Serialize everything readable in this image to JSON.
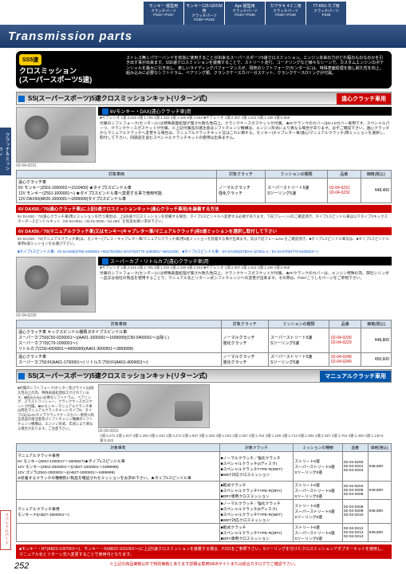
{
  "tabs": [
    {
      "t": "モンキー 縦型用",
      "s": "クラッチパーツ",
      "p": "P222〜P237"
    },
    {
      "t": "モンキー125-GROM用",
      "s": "クラッチパーツ",
      "p": "P238〜P243"
    },
    {
      "t": "Ape 縦型用",
      "s": "クラッチパーツ",
      "p": "P244〜P245"
    },
    {
      "t": "カワサキ 4ミニ用",
      "s": "クラッチパーツ",
      "p": "P246〜P249"
    },
    {
      "t": "TT-R50-カブ用",
      "s": "クラッチパーツ",
      "p": "P249"
    }
  ],
  "title": "Transmission parts",
  "hero": {
    "badge": "SS5速",
    "title1": "クロスミッション",
    "title2": "(スーパースポーツ5速)",
    "text": "ストレス無くパワーバンドを有効に使用することが出来るスーパースポーツ5速クロスミッション。エンジン本来の力がどれ程のものなのかを引き出す事が出来ます。SS5速クロスミッションを装備することで、ストリート走行、コーナリングなど様々なシーンで、カスタムエンジンのポテンシャルを最大に引き出し、楽しいライディングパフォーマンスが、現地のシフトフォーク(センター)には、特殊表面処理を施し耐久性を向上。組み込みに必要なシフトドラム、ベアリング類、クランクケースカバーガスケット、クランクケースOリングが付属。"
  },
  "s1": {
    "title": "SS(スーパースポーツ)5速クロスミッションキット(リターン式)",
    "tag": "遠心クラッチ車用"
  },
  "kit1": {
    "hdr": "6Vモンキー・DAX(遠心クラッチ車)用",
    "imgcode": "02-04-0231",
    "specs": "■ギアレシオ 1速:2.615 2速:1.705 3速:1.333 4速:1.190 5速:1.043 ■ギアレシオ 1速:2.357 2速:1.611 3速:1.190 4速:0.958",
    "desc": "付属のシフトフォーク(センター)には特殊表面処理が施され耐久性向上。クランクケースガスケットが付属。★R/クランクのカバーはD.I.Dカバー専用です。スペシャルパーツ、クランクケースガスケットが付属。※上記付属品の諸注意はシフトチェンジ機構は、エンジン形式により異なる場合があります。必ずご確認下さい。遠心クラッチからマニュアルクラッチへ変更する場合は、マニュアルクラッチキット又はこれに類する。モンキー(キャブレター車/遠心/マニュアルクラッチ)用ミッションを選択し、取付して下さい。同部品を含むスペシャルクラッチキットの使用は出来ません。"
  },
  "t1": {
    "h": [
      "対象車両",
      "対象クラッチ",
      "ミッションの種類",
      "品番",
      "価格(税込)"
    ],
    "r": [
      [
        "遠心クラッチ車\n6V モンキー(Z50J-1000001〜1510400) ★タイプ2スピンドル車\n12V モンキー(Z50J-1000001〜) ★タイプ2スピンドル車へ変更する事で使用可能\n12V DAX50(AB26-1000001〜1899999)タイプ2スピンドル車",
        "ノーマルクラッチ\n強化クラッチ",
        "スーパーストリート5速\nSツーリング5速",
        "02-04-0231\n02-04-0232",
        "¥48,400"
      ]
    ]
  },
  "redbar1": "6V DAX50／70(遠心クラッチ車)に上記5速クロスミッションキット(遠心クラッチ車用)を装着する方法",
  "note1": "6V DAX50／70(遠心クラッチ車)用にミッションを行う場合は、上記5速クロスミッションを装備する場合、タイプ2スピンドルへ変更する必要があります。下記プレーンAのご確認頂き、タイプ2スピンドル車は以下タイプ2キックスタータースピンドルキット（02-04-0011／02-01-0030／¥4,180）を別途お買い求め下さい。",
  "redbar2": "6V DAX50／70(マニュアルクラッチ車)又はモンキー(キャブレター車/マニュアルクラッチ)用5速ミッションを選択し取付して下さい",
  "note2": "6V DAX50／70(マニュアルクラッチ車)は、モンキー(プレス・キャブレター車/マニュアルクラッチ車)用5速ミッションを装着する事が出来ます。又は下記フレームNo.をご確認頂き、■タイプ1スピンドル車又は、■タイプ2スピンドル車用5速ミッションをお選び下さい。",
  "spindles": "■タイプ1スピンドル車：6V DAX50(ST50-1000001〜6027910)6V DAX70(ST70-1000001〜6015109)　■タイプ2スピンドル車：6V DAX50(ST50-6~)27911~)／6V DAX70(ST70-6100023〜)",
  "kit2": {
    "hdr": "スーパーカブ・リトルカブ(遠心クラッチ車)用",
    "imgcode": "02-04-0230",
    "specs": "■ギアレシオ 1速:2.615 2速:1.705 3速:1.333 4速:1.190 5速:1.043 ■ギアレシオ 1速:2.357 2速:1.611 3速:1.190 4速:0.958",
    "desc": "付属のシフトフォーク(センター)には特殊表面処理が施され耐久性向上。クランクケースガスケットが付属。★R/クランクのカバーは、エンジン特殊の為、弊社シリンダー品又は他社の製品を使用することで、マニュアル化とリターン式シフトチェンジへの変更が出来ます。その際は、P257こうしたページをご参照下さい。"
  },
  "t2": {
    "r": [
      [
        "遠心クラッチ車 キックスピンドル種類:Dタイプスピンドル車\nスーパーカブ50(C50-0200001〜)(AA01-1000001〜1699999)(C50-0400001〜は除く)\nスーパーカブ70(C70-1000001〜)\nリトルカブ(C50-4300001〜4999999)(AA01-3000001〜3999999)",
        "ノーマルクラッチ\n強化クラッチ",
        "スーパーストリート5速\nSツーリング5速",
        "02-04-0230\n02-04-0229",
        "¥48,800"
      ],
      [
        "遠心クラッチ車\nスーパーカブ50:FI(AA01-1700001〜) リトルカブ50:FI(AA01-4000001〜)",
        "ノーマルクラッチ\n強化クラッチ",
        "スーパーストリート5速\nSツーリング5速",
        "02-04-0248\n02-04-0249",
        "¥50,600"
      ]
    ]
  },
  "s2": {
    "title": "SS(スーパースポーツ)5速クロスミッションキット(リターン式)",
    "tag": "マニュアルクラッチ車用"
  },
  "kit3": {
    "imgcode": "02-04-0201",
    "desc": "■付属のシフトフォーク(センター及びライト)は耐久性向上の為、特殊表面処理加工がされています。■組み込みに必要なシフトドラム、ベアリング、スラストワッシャー、クランクケースガスケットが付属。■6Vモンキーマニュアルクラッチ車は弊社マニュアルクラッチキットタイプR、タイプ3又は12Vタイプクランクケースカバー専用※純正部品の諸注意及びシフトチェンジ機構のシフトチェンジ機構は、エンジン形式、年式により異なる場合があります。ご注意下さい。",
    "specs": "1速:3.272 2速:1.937 3速:1.250 4速:1.043 1速:3.272 2速:1.937 3速:1.250 4速:1.043 1速:2.357 2速:1.764 3速:1.190 4速:1.714 5速:1.084 1速:2.357 2速:1.764 3速:1.400 4速:1.130 5速:0.923"
  },
  "t3": {
    "h": [
      "対象車両",
      "対象クラッチ",
      "ミッションの種類",
      "品番",
      "価格(税込)"
    ],
    "r": [
      [
        "マニュアルクラッチ車用\n6V モンキー(Z50J-1300017〜1805927)★タイプ1スピンドル車\n12V モンキー(Z50J-2000001〜)(AB27-1000001〜1899999)\n12V ゴリラ(Z50J-2000001〜)(AB27-1000001〜1899999)\n※装着するクラッチの種類別に製品を確認されたミッションをお求め下さい。★タイプ2スピンドル車",
        "■ノーマルクラッチ／強化クラッチ\n■スペシャルクラッチ(4ディスク)\n■スペシャルクラッチTYPE-R(WET)\n■WET対応クロスミッション",
        "ストリート5速\nスーパーストリート5速\nSツーリング5速",
        "02-04-0200\n02-04-0201\n02-04-0202",
        "¥46,500"
      ],
      [
        "",
        "■乾式クラッチ\n■スペシャルクラッチTYPE-R(DRY)\n■DRY専用クロスミッション",
        "ストリート5速\nスーパーストリート5速\nSツーリング5速",
        "02-04-0204\n02-04-0205\n02-04-0206",
        "¥49,800"
      ],
      [
        "マニュアルクラッチ車用\nモンキー:FI(AB27-1900001〜)",
        "■ノーマルクラッチ／強化クラッチ\n■スペシャルクラッチ(5ディスク)\n■スペシャルクラッチTYPE-R(WET)\n■WET対応クロスミッション",
        "ストリート5速\nスーパーストリート5速\nSツーリング5速",
        "02-04-0208\n02-04-0209\n02-04-0210",
        "¥46,500"
      ],
      [
        "",
        "■乾式クラッチ\n■スペシャルクラッチTYPE-R(DRY)\n■DRY専用クロスミッション",
        "ストリート5速\nスーパーストリート5速\nSツーリング5速",
        "02-04-0212\n02-04-0213\n02-04-0214",
        "¥49,800"
      ]
    ]
  },
  "footer": "■モンキー・RT(AB23-1007001〜)、モンキー・R(AB22-1011001〜)に上記5速クロスミッションを装着する場合、P231をご参照下さい。Sツーリングを付けたクロスミッションアダプターキットを使用し、マニュアル化とリターン式へ変更することで使用可となります。",
  "pagenote": "※上記の商品価格以外で特別価格とあります詳細は専用WEBサイトまたは総合カタログでご確認下さい。",
  "pagenum": "252"
}
